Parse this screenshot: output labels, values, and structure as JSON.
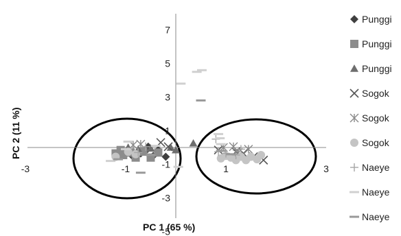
{
  "chart_data": {
    "type": "scatter",
    "xlabel": "PC 1 (65 %)",
    "ylabel": "PC 2 (11 %)",
    "xlim": [
      -3,
      3
    ],
    "ylim": [
      -5,
      7
    ],
    "x_ticks": [
      "-3",
      "-1",
      "1",
      "3"
    ],
    "y_ticks": [
      "7",
      "5",
      "3",
      "1",
      "-1",
      "-3",
      "-5"
    ],
    "grid": false,
    "legend_position": "right",
    "series": [
      {
        "name": "Punggi",
        "marker": "diamond",
        "color": "#404040",
        "points": [
          [
            -0.85,
            -0.55
          ],
          [
            -0.6,
            -0.2
          ],
          [
            -0.45,
            -0.5
          ],
          [
            -0.35,
            -0.15
          ],
          [
            -0.55,
            0.05
          ],
          [
            -0.2,
            -0.55
          ],
          [
            -0.7,
            -0.35
          ]
        ]
      },
      {
        "name": "Punggi",
        "marker": "square",
        "color": "#8c8c8c",
        "points": [
          [
            -1.2,
            -0.35
          ],
          [
            -1.05,
            -0.45
          ],
          [
            -0.9,
            -0.3
          ],
          [
            -0.8,
            -0.6
          ],
          [
            -0.65,
            -0.25
          ],
          [
            -0.5,
            -0.6
          ],
          [
            -0.35,
            -0.3
          ],
          [
            -1.1,
            -0.15
          ]
        ]
      },
      {
        "name": "Punggi",
        "marker": "triangle",
        "color": "#6e6e6e",
        "points": [
          [
            -0.95,
            0.0
          ],
          [
            -0.75,
            -0.1
          ],
          [
            -0.5,
            -0.05
          ],
          [
            -0.1,
            0.0
          ],
          [
            0.0,
            -0.15
          ],
          [
            0.35,
            0.25
          ]
        ]
      },
      {
        "name": "Sogok",
        "marker": "x",
        "color": "#555555",
        "points": [
          [
            -0.3,
            0.3
          ],
          [
            -0.15,
            0.05
          ],
          [
            0.85,
            -0.15
          ],
          [
            1.2,
            -0.25
          ],
          [
            1.35,
            -0.35
          ],
          [
            1.55,
            -0.55
          ],
          [
            1.75,
            -0.75
          ]
        ]
      },
      {
        "name": "Sogok",
        "marker": "asterisk",
        "color": "#8a8a8a",
        "points": [
          [
            -0.85,
            0.15
          ],
          [
            -0.7,
            0.2
          ],
          [
            0.95,
            0.0
          ],
          [
            1.15,
            0.05
          ],
          [
            1.25,
            -0.3
          ],
          [
            1.45,
            -0.1
          ]
        ]
      },
      {
        "name": "Sogok",
        "marker": "circle",
        "color": "#c4c4c4",
        "points": [
          [
            0.9,
            -0.65
          ],
          [
            1.0,
            -0.5
          ],
          [
            1.1,
            -0.6
          ],
          [
            1.2,
            -0.75
          ],
          [
            1.3,
            -0.55
          ],
          [
            1.4,
            -0.75
          ],
          [
            1.5,
            -0.55
          ],
          [
            1.62,
            -0.7
          ],
          [
            1.7,
            -0.45
          ],
          [
            -0.95,
            -0.25
          ],
          [
            -0.8,
            -0.4
          ],
          [
            -1.2,
            -0.55
          ]
        ]
      },
      {
        "name": "Naeye",
        "marker": "plus",
        "color": "#a6a6a6",
        "points": [
          [
            0.8,
            0.5
          ],
          [
            0.85,
            -0.25
          ],
          [
            1.0,
            -0.35
          ],
          [
            1.2,
            -0.45
          ],
          [
            1.3,
            -0.1
          ],
          [
            -0.75,
            -0.3
          ],
          [
            -0.6,
            0.05
          ]
        ]
      },
      {
        "name": "Naeye",
        "marker": "dash",
        "color": "#d0d0d0",
        "points": [
          [
            0.1,
            3.8
          ],
          [
            0.42,
            4.5
          ],
          [
            0.52,
            4.6
          ],
          [
            0.85,
            0.8
          ],
          [
            0.88,
            0.55
          ],
          [
            0.9,
            0.2
          ],
          [
            -1.0,
            -0.1
          ],
          [
            -0.95,
            0.35
          ],
          [
            -0.4,
            0.1
          ],
          [
            0.05,
            -1.15
          ],
          [
            -1.3,
            -0.8
          ]
        ]
      },
      {
        "name": "Naeye",
        "marker": "dash",
        "color": "#999999",
        "points": [
          [
            0.5,
            2.8
          ],
          [
            0.9,
            -0.2
          ],
          [
            1.1,
            -0.4
          ],
          [
            -0.7,
            -1.5
          ],
          [
            -1.15,
            -0.7
          ],
          [
            -0.5,
            -0.45
          ]
        ]
      }
    ],
    "annotations": [
      "ellipse around left cluster",
      "ellipse around right cluster"
    ]
  }
}
